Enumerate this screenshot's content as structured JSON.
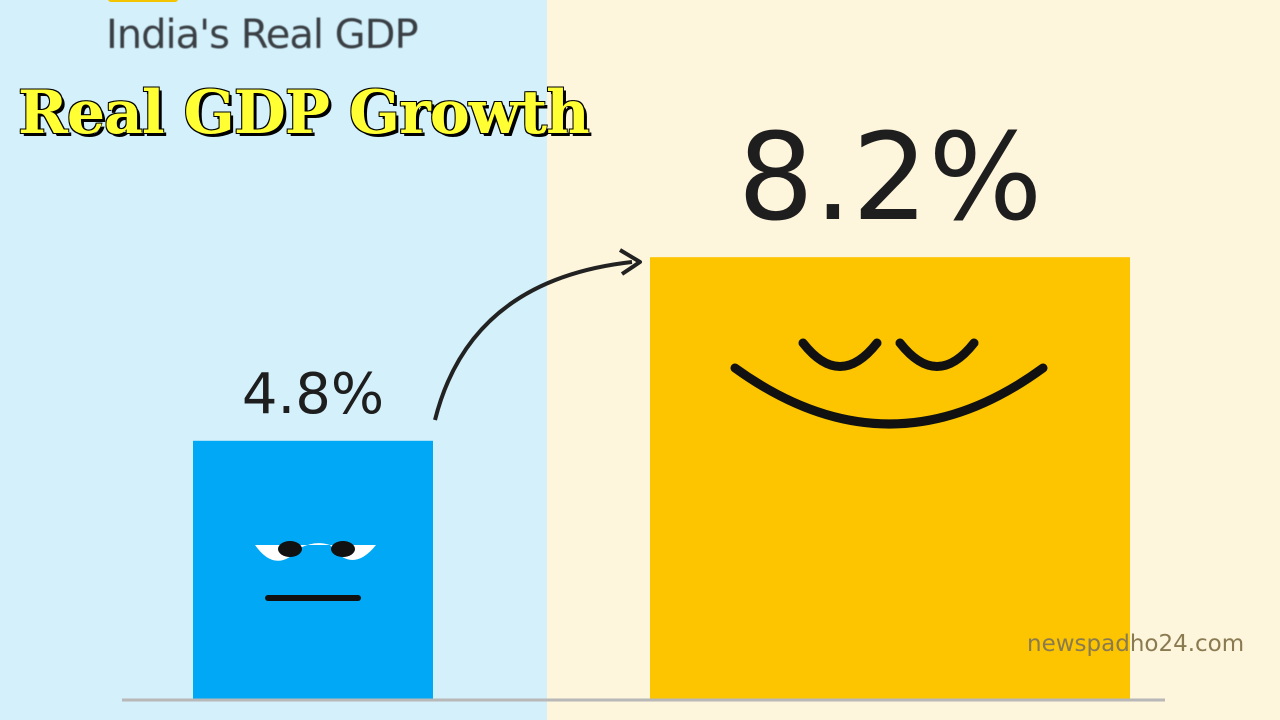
{
  "header": {
    "subtitle": "India's Real GDP",
    "overlay_title": "Real GDP Growth"
  },
  "watermark": "newspadho24.com",
  "chart_data": {
    "type": "bar",
    "categories": [
      "",
      ""
    ],
    "values": [
      4.8,
      8.2
    ],
    "data_labels": [
      "4.8%",
      "8.2%"
    ],
    "colors": [
      "#00a8f5",
      "#fcc500"
    ],
    "faces": [
      "bored",
      "happy"
    ],
    "ylim": [
      0,
      9
    ],
    "grid": false,
    "annotation": "arrow-from-first-to-second-bar"
  }
}
